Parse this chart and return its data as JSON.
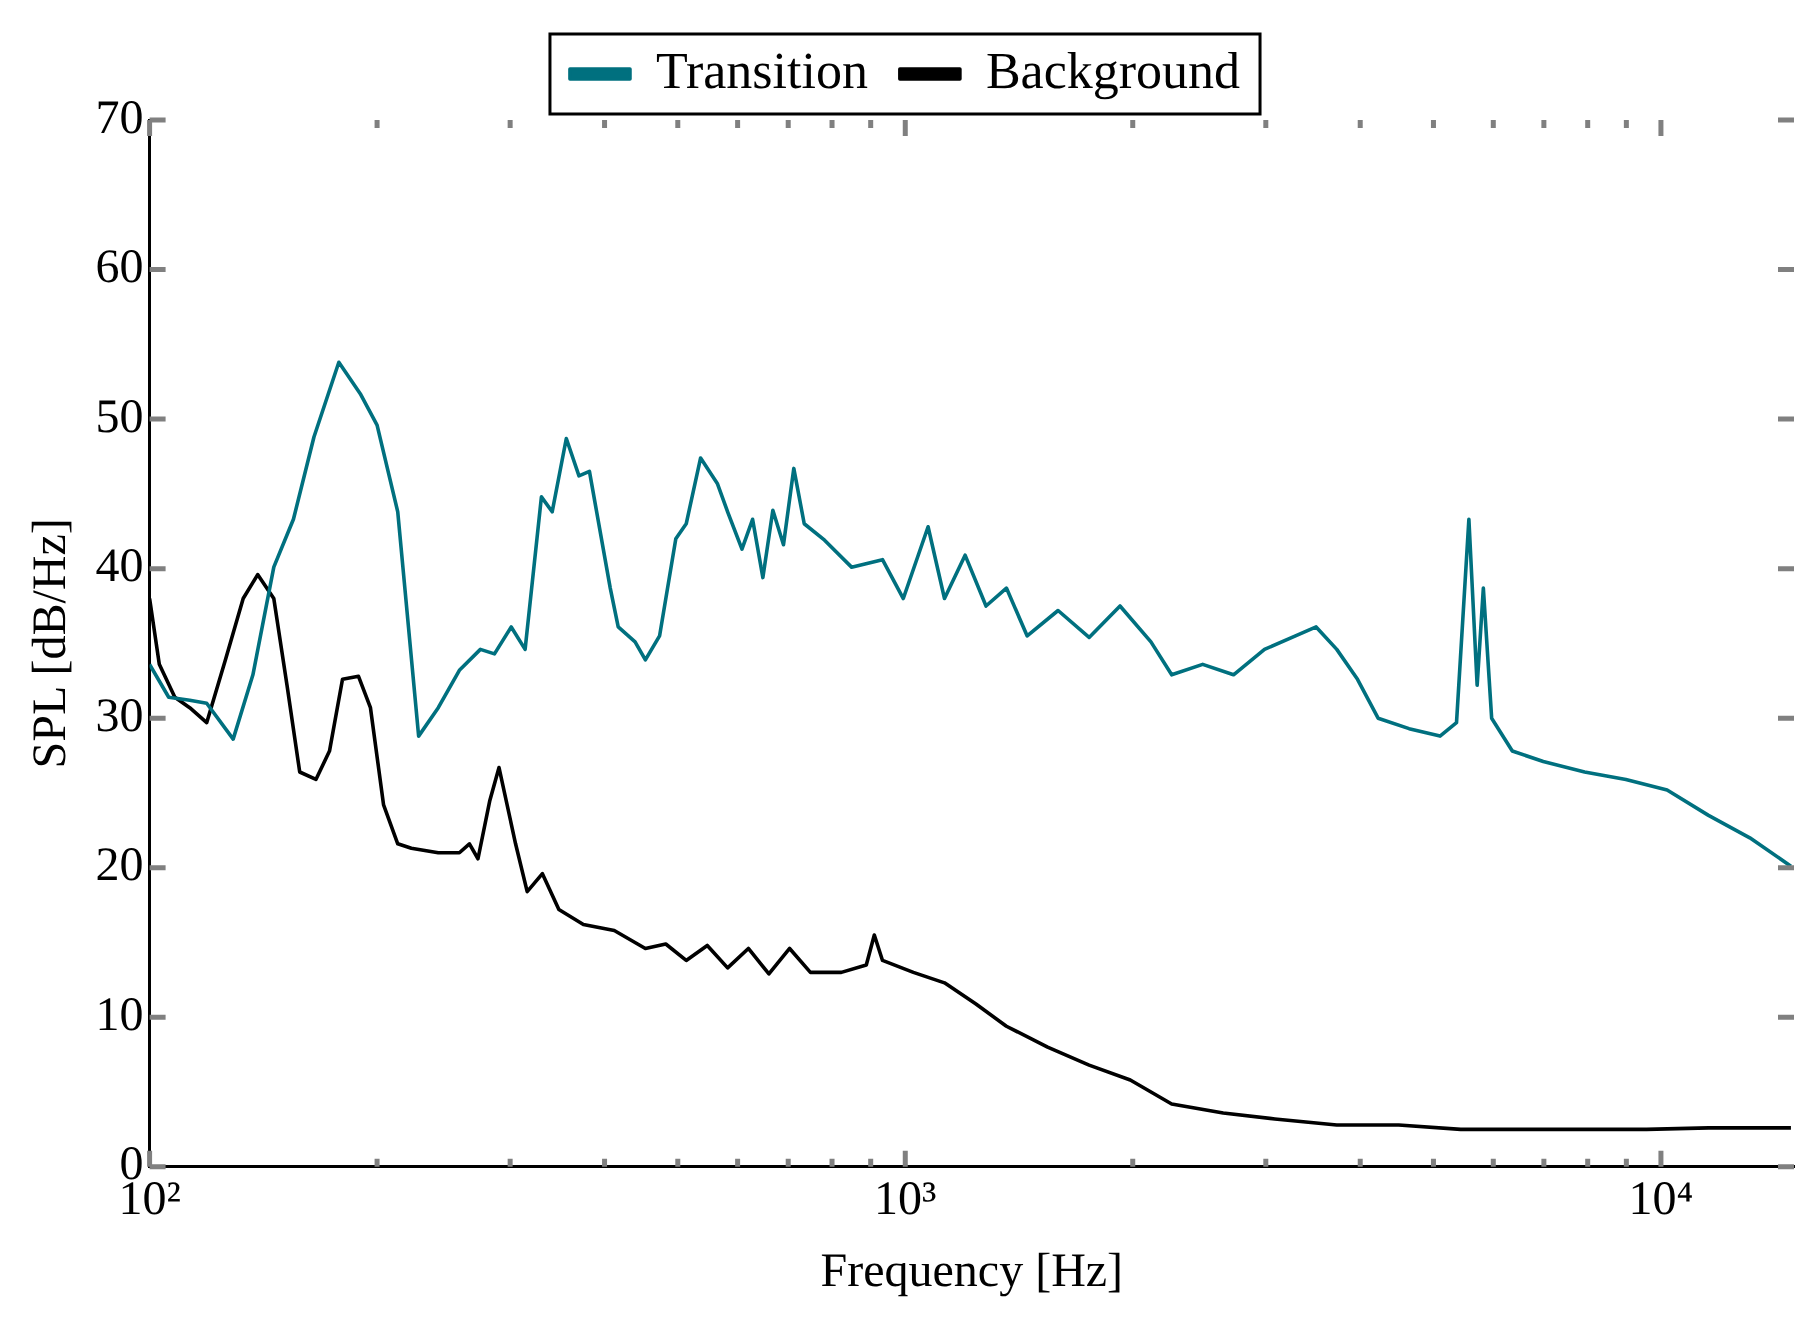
{
  "chart_data": {
    "type": "line",
    "xlabel": "Frequency [Hz]",
    "ylabel": "SPL [dB/Hz]",
    "log": "x",
    "xlim": [
      100,
      15000
    ],
    "ylim": [
      0,
      70
    ],
    "yticks": [
      0,
      10,
      20,
      30,
      40,
      50,
      60,
      70
    ],
    "xticks": [
      {
        "value": 100,
        "label": "10²"
      },
      {
        "value": 200,
        "label": null
      },
      {
        "value": 300,
        "label": null
      },
      {
        "value": 400,
        "label": null
      },
      {
        "value": 500,
        "label": null
      },
      {
        "value": 600,
        "label": null
      },
      {
        "value": 700,
        "label": null
      },
      {
        "value": 800,
        "label": null
      },
      {
        "value": 900,
        "label": null
      },
      {
        "value": 1000,
        "label": "10³"
      },
      {
        "value": 2000,
        "label": null
      },
      {
        "value": 3000,
        "label": null
      },
      {
        "value": 4000,
        "label": null
      },
      {
        "value": 5000,
        "label": null
      },
      {
        "value": 6000,
        "label": null
      },
      {
        "value": 7000,
        "label": null
      },
      {
        "value": 8000,
        "label": null
      },
      {
        "value": 9000,
        "label": null
      },
      {
        "value": 10000,
        "label": "10⁴"
      }
    ],
    "grid": false,
    "legend": "top",
    "marker": "none",
    "line_style": "solid",
    "series": [
      {
        "name": "Transition",
        "color": "#00707f",
        "x": [
          100,
          106,
          113,
          119,
          129,
          137,
          146,
          155,
          165,
          178,
          190,
          200,
          213,
          227,
          241,
          257,
          274,
          286,
          301,
          314,
          330,
          341,
          356,
          370,
          382,
          407,
          417,
          439,
          453,
          473,
          497,
          513,
          536,
          564,
          582,
          608,
          628,
          648,
          668,
          690,
          712,
          735,
          782,
          849,
          933,
          994,
          1072,
          1127,
          1200,
          1279,
          1361,
          1450,
          1593,
          1751,
          1924,
          2114,
          2252,
          2475,
          2719,
          2988,
          3284,
          3497,
          3724,
          3967,
          4224,
          4642,
          5101,
          5364,
          5570,
          5712,
          5821,
          5970,
          6358,
          6987,
          7925,
          8987,
          10190,
          11560,
          13110,
          14860
        ],
        "values": [
          33.6,
          31.4,
          31.2,
          31,
          28.6,
          32.9,
          40.1,
          43.3,
          48.8,
          53.8,
          51.7,
          49.6,
          43.8,
          28.8,
          30.7,
          33.2,
          34.6,
          34.3,
          36.1,
          34.6,
          44.8,
          43.8,
          48.7,
          46.2,
          46.5,
          38.7,
          36.1,
          35.1,
          33.9,
          35.5,
          42,
          43,
          47.4,
          45.7,
          43.8,
          41.3,
          43.3,
          39.4,
          43.9,
          41.6,
          46.7,
          43,
          41.9,
          40.1,
          40.6,
          38,
          42.8,
          38,
          40.9,
          37.5,
          38.7,
          35.5,
          37.2,
          35.4,
          37.5,
          35.1,
          32.9,
          33.6,
          32.9,
          34.6,
          35.5,
          36.1,
          34.6,
          32.6,
          30,
          29.3,
          28.8,
          29.7,
          43.3,
          32.2,
          38.7,
          30,
          27.8,
          27.1,
          26.4,
          25.9,
          25.2,
          23.5,
          22,
          20.1
        ]
      },
      {
        "name": "Background",
        "color": "#000000",
        "x": [
          100,
          103,
          108,
          113,
          119,
          126,
          133,
          139,
          146,
          152,
          158,
          166,
          173,
          180,
          189,
          196,
          204,
          213,
          222,
          241,
          257,
          265,
          272,
          282,
          290,
          305,
          316,
          331,
          348,
          375,
          412,
          453,
          482,
          513,
          547,
          582,
          620,
          660,
          703,
          749,
          823,
          888,
          910,
          933,
          1025,
          1127,
          1239,
          1361,
          1543,
          1751,
          1985,
          2252,
          2635,
          3084,
          3724,
          4498,
          5433,
          6560,
          7925,
          9570,
          11560,
          14860
        ],
        "values": [
          38,
          33.6,
          31.4,
          30.7,
          29.7,
          33.9,
          38,
          39.6,
          38,
          32.2,
          26.4,
          25.9,
          27.8,
          32.6,
          32.8,
          30.7,
          24.2,
          21.6,
          21.3,
          21,
          21,
          21.6,
          20.6,
          24.5,
          26.7,
          21.6,
          18.4,
          19.6,
          17.2,
          16.2,
          15.8,
          14.6,
          14.9,
          13.8,
          14.8,
          13.3,
          14.6,
          12.9,
          14.6,
          13,
          13,
          13.5,
          15.5,
          13.8,
          13,
          12.3,
          10.9,
          9.4,
          8,
          6.8,
          5.8,
          4.2,
          3.6,
          3.2,
          2.8,
          2.8,
          2.5,
          2.5,
          2.5,
          2.5,
          2.6,
          2.6
        ]
      }
    ]
  }
}
